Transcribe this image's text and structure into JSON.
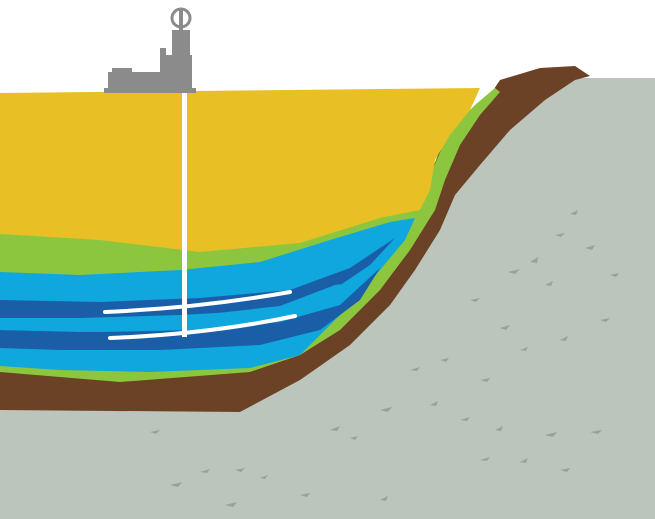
{
  "diagram": {
    "layers": [
      {
        "id": "bedrock",
        "color": "#bcc5bb"
      },
      {
        "id": "soil",
        "color": "#6b4226"
      },
      {
        "id": "clay",
        "color": "#8cc63f"
      },
      {
        "id": "topsoil",
        "color": "#e8bf24"
      },
      {
        "id": "aquifer",
        "color": "#0fa7de"
      },
      {
        "id": "aquifer-deep",
        "color": "#1a5ea8"
      }
    ],
    "rig": {
      "color": "#8b8b8b"
    },
    "well": {
      "color": "#ffffff"
    },
    "pebble_color": "#9aa196"
  }
}
